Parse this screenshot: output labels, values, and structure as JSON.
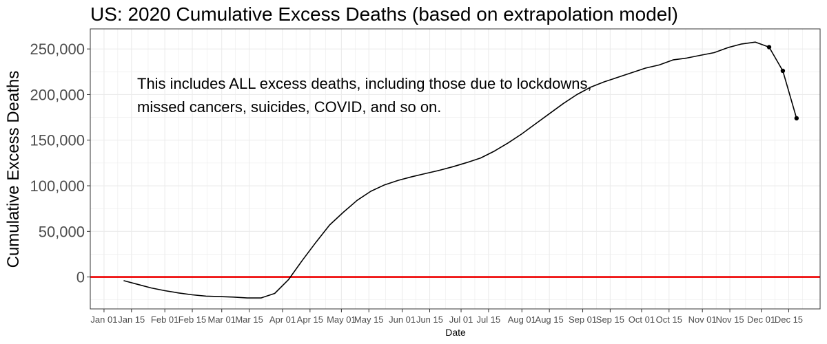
{
  "chart_data": {
    "type": "line",
    "title": "US: 2020 Cumulative Excess Deaths (based on extrapolation model)",
    "xlabel": "Date",
    "ylabel": "Cumulative Excess Deaths",
    "x_ticks": [
      "Jan 01",
      "Jan 15",
      "Feb 01",
      "Feb 15",
      "Mar 01",
      "Mar 15",
      "Apr 01",
      "Apr 15",
      "May 01",
      "May 15",
      "Jun 01",
      "Jun 15",
      "Jul 01",
      "Jul 15",
      "Aug 01",
      "Aug 15",
      "Sep 01",
      "Sep 15",
      "Oct 01",
      "Oct 15",
      "Nov 01",
      "Nov 15",
      "Dec 01",
      "Dec 15"
    ],
    "y_ticks": [
      "0",
      "50,000",
      "100,000",
      "150,000",
      "200,000",
      "250,000"
    ],
    "ylim": [
      -35000,
      272000
    ],
    "xlim": [
      "2019-12-25",
      "2020-12-31"
    ],
    "grid": true,
    "annotation": [
      "This includes ALL excess deaths, including those due to lockdowns,",
      "missed cancers, suicides, COVID, and so on."
    ],
    "reference_line": {
      "y": 0,
      "color": "#ee0000"
    },
    "series": [
      {
        "line_color": "#000000",
        "points": [
          {
            "x": "2020-01-11",
            "y": -4000
          },
          {
            "x": "2020-01-18",
            "y": -8000
          },
          {
            "x": "2020-01-25",
            "y": -12000
          },
          {
            "x": "2020-02-01",
            "y": -15000
          },
          {
            "x": "2020-02-08",
            "y": -17500
          },
          {
            "x": "2020-02-15",
            "y": -19500
          },
          {
            "x": "2020-02-22",
            "y": -21000
          },
          {
            "x": "2020-02-29",
            "y": -21500
          },
          {
            "x": "2020-03-07",
            "y": -22000
          },
          {
            "x": "2020-03-14",
            "y": -23000
          },
          {
            "x": "2020-03-21",
            "y": -23000
          },
          {
            "x": "2020-03-28",
            "y": -18000
          },
          {
            "x": "2020-04-04",
            "y": -3000
          },
          {
            "x": "2020-04-11",
            "y": 18000
          },
          {
            "x": "2020-04-18",
            "y": 38000
          },
          {
            "x": "2020-04-25",
            "y": 57000
          },
          {
            "x": "2020-05-02",
            "y": 71000
          },
          {
            "x": "2020-05-09",
            "y": 84000
          },
          {
            "x": "2020-05-16",
            "y": 94000
          },
          {
            "x": "2020-05-23",
            "y": 101000
          },
          {
            "x": "2020-05-30",
            "y": 106000
          },
          {
            "x": "2020-06-06",
            "y": 110000
          },
          {
            "x": "2020-06-13",
            "y": 113500
          },
          {
            "x": "2020-06-20",
            "y": 117000
          },
          {
            "x": "2020-06-27",
            "y": 121000
          },
          {
            "x": "2020-07-04",
            "y": 125500
          },
          {
            "x": "2020-07-11",
            "y": 130500
          },
          {
            "x": "2020-07-18",
            "y": 138000
          },
          {
            "x": "2020-07-25",
            "y": 147000
          },
          {
            "x": "2020-08-01",
            "y": 157000
          },
          {
            "x": "2020-08-08",
            "y": 168000
          },
          {
            "x": "2020-08-15",
            "y": 179000
          },
          {
            "x": "2020-08-22",
            "y": 190000
          },
          {
            "x": "2020-08-29",
            "y": 200000
          },
          {
            "x": "2020-09-05",
            "y": 208000
          },
          {
            "x": "2020-09-12",
            "y": 214000
          },
          {
            "x": "2020-09-19",
            "y": 219000
          },
          {
            "x": "2020-09-26",
            "y": 224000
          },
          {
            "x": "2020-10-03",
            "y": 229000
          },
          {
            "x": "2020-10-10",
            "y": 232500
          },
          {
            "x": "2020-10-17",
            "y": 238000
          },
          {
            "x": "2020-10-24",
            "y": 240000
          },
          {
            "x": "2020-10-31",
            "y": 243000
          },
          {
            "x": "2020-11-07",
            "y": 246000
          },
          {
            "x": "2020-11-14",
            "y": 251500
          },
          {
            "x": "2020-11-21",
            "y": 255500
          },
          {
            "x": "2020-11-28",
            "y": 257500
          },
          {
            "x": "2020-12-05",
            "y": 252000
          },
          {
            "x": "2020-12-12",
            "y": 226000
          },
          {
            "x": "2020-12-19",
            "y": 174000
          }
        ],
        "marked_points": [
          {
            "x": "2020-12-05",
            "y": 252000
          },
          {
            "x": "2020-12-12",
            "y": 226000
          },
          {
            "x": "2020-12-19",
            "y": 174000
          }
        ]
      }
    ]
  }
}
